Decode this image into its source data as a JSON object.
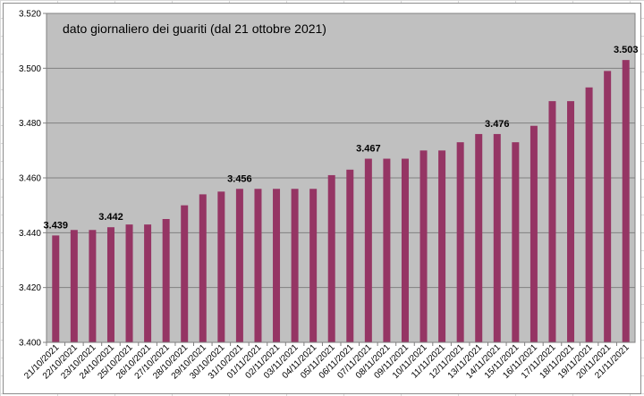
{
  "chart_data": {
    "type": "bar",
    "title": "dato giornaliero dei guariti (dal 21 ottobre 2021)",
    "xlabel": "",
    "ylabel": "",
    "ylim": [
      3400,
      3520
    ],
    "yticks": [
      3400,
      3420,
      3440,
      3460,
      3480,
      3500,
      3520
    ],
    "ytick_labels": [
      "3.400",
      "3.420",
      "3.440",
      "3.460",
      "3.480",
      "3.500",
      "3.520"
    ],
    "grid": true,
    "legend": "none",
    "colors": {
      "bar": "#953564",
      "plot_bg": "#c0c0c0",
      "grid": "#808080"
    },
    "categories": [
      "21/10/2021",
      "22/10/2021",
      "23/10/2021",
      "24/10/2021",
      "25/10/2021",
      "26/10/2021",
      "27/10/2021",
      "28/10/2021",
      "29/10/2021",
      "30/10/2021",
      "31/10/2021",
      "01/11/2021",
      "02/11/2021",
      "03/11/2021",
      "04/11/2021",
      "05/11/2021",
      "06/11/2021",
      "07/11/2021",
      "08/11/2021",
      "09/11/2021",
      "10/11/2021",
      "11/11/2021",
      "12/11/2021",
      "13/11/2021",
      "14/11/2021",
      "15/11/2021",
      "16/11/2021",
      "17/11/2021",
      "18/11/2021",
      "19/11/2021",
      "20/11/2021",
      "21/11/2021"
    ],
    "values": [
      3439,
      3441,
      3441,
      3442,
      3443,
      3443,
      3445,
      3450,
      3454,
      3455,
      3456,
      3456,
      3456,
      3456,
      3456,
      3461,
      3463,
      3467,
      3467,
      3467,
      3470,
      3470,
      3473,
      3476,
      3476,
      3473,
      3479,
      3488,
      3488,
      3493,
      3499,
      3503
    ],
    "data_labels": [
      {
        "index": 0,
        "text": "3.439"
      },
      {
        "index": 3,
        "text": "3.442"
      },
      {
        "index": 10,
        "text": "3.456"
      },
      {
        "index": 17,
        "text": "3.467"
      },
      {
        "index": 24,
        "text": "3.476"
      },
      {
        "index": 31,
        "text": "3.503"
      }
    ]
  }
}
